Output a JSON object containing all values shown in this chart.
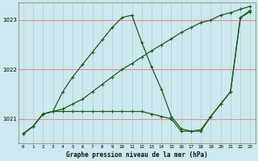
{
  "title": "Graphe pression niveau de la mer (hPa)",
  "bg_color": "#cde8ee",
  "grid_color_h": "#e09090",
  "grid_color_v": "#aecece",
  "line_color": "#1a5c1a",
  "xlim": [
    -0.5,
    23.5
  ],
  "ylim": [
    1020.5,
    1023.35
  ],
  "yticks": [
    1021,
    1022,
    1023
  ],
  "xticks": [
    0,
    1,
    2,
    3,
    4,
    5,
    6,
    7,
    8,
    9,
    10,
    11,
    12,
    13,
    14,
    15,
    16,
    17,
    18,
    19,
    20,
    21,
    22,
    23
  ],
  "s1_x": [
    0,
    1,
    2,
    3,
    4,
    5,
    6,
    7,
    8,
    9,
    10,
    11,
    12,
    13,
    14,
    15,
    16,
    17,
    18,
    19,
    20,
    21,
    22,
    23
  ],
  "s1_y": [
    1020.7,
    1020.85,
    1021.1,
    1021.15,
    1021.55,
    1021.85,
    1022.1,
    1022.35,
    1022.6,
    1022.85,
    1023.05,
    1023.1,
    1022.55,
    1022.05,
    1021.6,
    1021.05,
    1020.8,
    1020.75,
    1020.78,
    1021.05,
    1021.3,
    1021.55,
    1023.05,
    1023.2
  ],
  "s2_x": [
    0,
    1,
    2,
    3,
    4,
    5,
    6,
    7,
    8,
    9,
    10,
    11,
    12,
    13,
    14,
    15,
    16,
    17,
    18,
    19,
    20,
    21,
    22,
    23
  ],
  "s2_y": [
    1020.7,
    1020.85,
    1021.1,
    1021.15,
    1021.2,
    1021.3,
    1021.4,
    1021.55,
    1021.7,
    1021.85,
    1022.0,
    1022.12,
    1022.25,
    1022.38,
    1022.5,
    1022.62,
    1022.75,
    1022.85,
    1022.95,
    1023.0,
    1023.1,
    1023.15,
    1023.22,
    1023.28
  ],
  "s3_x": [
    0,
    1,
    2,
    3,
    4,
    5,
    6,
    7,
    8,
    9,
    10,
    11,
    12,
    13,
    14,
    15,
    16,
    17,
    18,
    19,
    20,
    21,
    22,
    23
  ],
  "s3_y": [
    1020.7,
    1020.85,
    1021.1,
    1021.15,
    1021.15,
    1021.15,
    1021.15,
    1021.15,
    1021.15,
    1021.15,
    1021.15,
    1021.15,
    1021.15,
    1021.1,
    1021.05,
    1021.0,
    1020.75,
    1020.75,
    1020.75,
    1021.05,
    1021.3,
    1021.55,
    1023.05,
    1023.17
  ]
}
